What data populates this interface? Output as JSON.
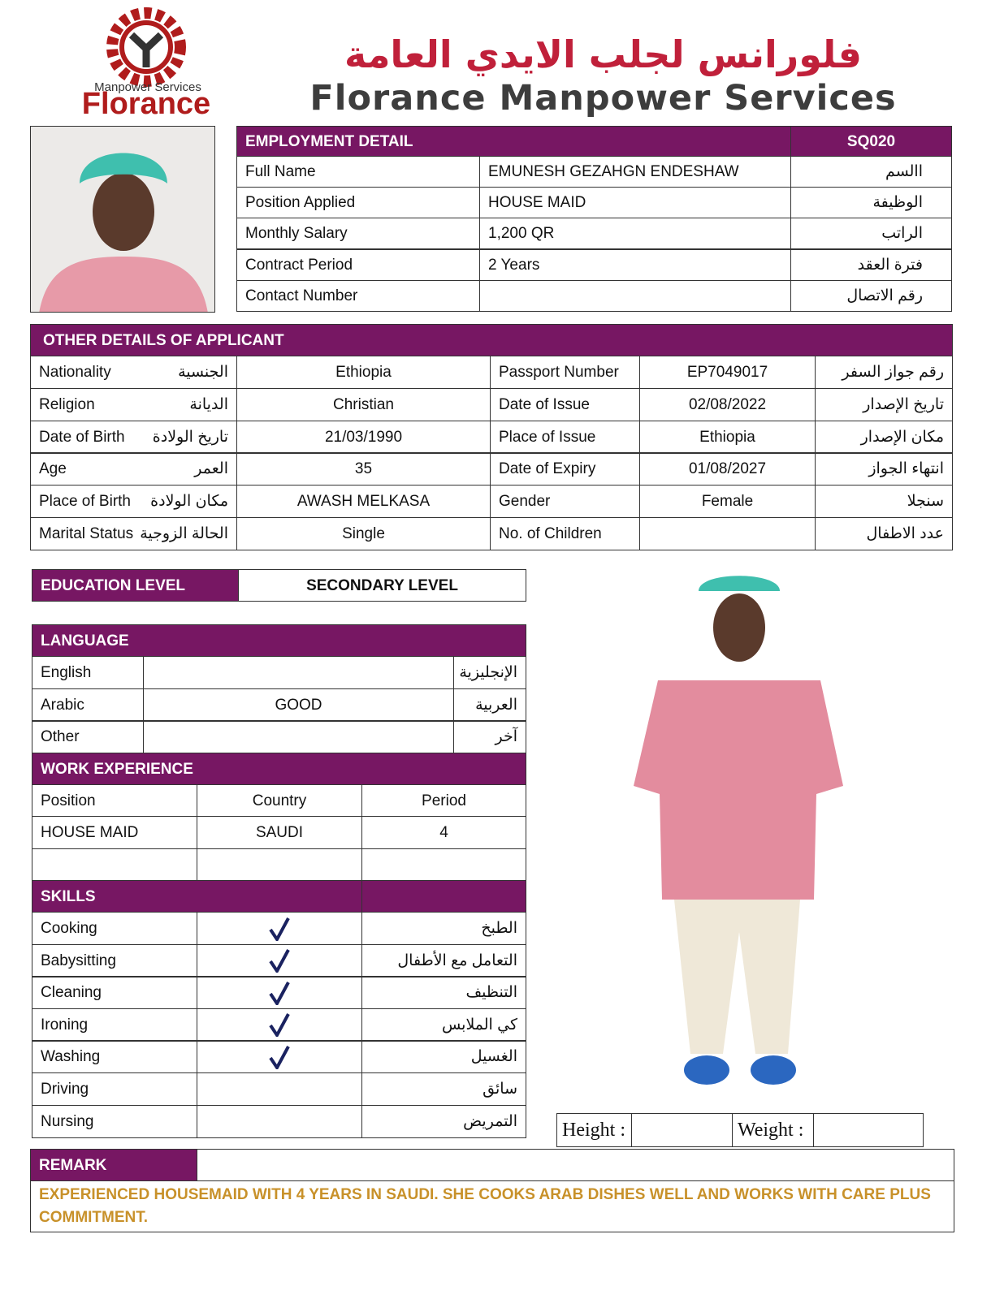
{
  "header": {
    "logo_top": "Manpower Services",
    "logo_name": "Florance",
    "arabic_name": "فلورانس لجلب الايدي العامة",
    "english_name": "Florance Manpower Services"
  },
  "employment": {
    "title": "EMPLOYMENT DETAIL",
    "code": "SQ020",
    "rows": [
      {
        "label": "Full Name",
        "value": "EMUNESH GEZAHGN ENDESHAW",
        "arabic": "االسم"
      },
      {
        "label": "Position Applied",
        "value": "HOUSE MAID",
        "arabic": "الوظيفة"
      },
      {
        "label": "Monthly Salary",
        "value": "1,200  QR",
        "arabic": "الراتب"
      },
      {
        "label": "Contract Period",
        "value": "2 Years",
        "arabic": "فترة العقد"
      },
      {
        "label": "Contact Number",
        "arabic": "رقم الاتصال"
      }
    ]
  },
  "other_details": {
    "title": "OTHER DETAILS OF APPLICANT",
    "rows": [
      {
        "label": "Nationality",
        "arabic": "الجنسية",
        "value": "Ethiopia",
        "label2": "Passport Number",
        "value2": "EP7049017",
        "arabic2": "رقم جواز السفر"
      },
      {
        "label": "Religion",
        "arabic": "الديانة",
        "value": "Christian",
        "label2": "Date of Issue",
        "value2": "02/08/2022",
        "arabic2": "تاريخ الإصدار"
      },
      {
        "label": "Date of Birth",
        "arabic": "تاريخ الولادة",
        "value": "21/03/1990",
        "label2": "Place of Issue",
        "value2": "Ethiopia",
        "arabic2": "مكان الإصدار"
      },
      {
        "label": "Age",
        "arabic": "العمر",
        "value": 35,
        "label2": "Date of Expiry",
        "value2": "01/08/2027",
        "arabic2": "انتهاء الجواز"
      },
      {
        "label": "Place of Birth",
        "arabic": "مكان الولادة",
        "value": "AWASH MELKASA",
        "label2": "Gender",
        "value2": "Female",
        "arabic2": "سنجلا"
      },
      {
        "label": "Marital Status",
        "arabic": "الحالة الزوجية",
        "value": "Single",
        "label2": "No. of Children",
        "arabic2": "عدد الاطفال"
      }
    ]
  },
  "education": {
    "title": "EDUCATION LEVEL",
    "value": "SECONDARY LEVEL"
  },
  "language": {
    "title": "LANGUAGE",
    "rows": [
      {
        "label": "English",
        "arabic": "الإنجليزية"
      },
      {
        "label": "Arabic",
        "value": "GOOD",
        "arabic": "العربية"
      },
      {
        "label": "Other",
        "arabic": "آخر"
      }
    ]
  },
  "work_experience": {
    "title": "WORK EXPERIENCE",
    "columns": [
      "Position",
      "Country",
      "Period"
    ],
    "rows": [
      [
        "HOUSE MAID",
        "SAUDI",
        4
      ]
    ]
  },
  "skills": {
    "title": "SKILLS",
    "items": [
      {
        "label": "Cooking",
        "arabic": "الطبخ",
        "checked": true
      },
      {
        "label": "Babysitting",
        "arabic": "التعامل مع الأطفال",
        "checked": true
      },
      {
        "label": "Cleaning",
        "arabic": "التنظيف",
        "checked": true
      },
      {
        "label": "Ironing",
        "arabic": "كي الملابس",
        "checked": true
      },
      {
        "label": "Washing",
        "arabic": "الغسيل",
        "checked": true
      },
      {
        "label": "Driving",
        "arabic": "سائق",
        "checked": false
      },
      {
        "label": "Nursing",
        "arabic": "التمريض",
        "checked": false
      }
    ]
  },
  "measurements": {
    "height_label": "Height :",
    "weight_label": "Weight :"
  },
  "remark": {
    "title": "REMARK",
    "text": "EXPERIENCED HOUSEMAID WITH 4 YEARS IN SAUDI. SHE COOKS ARAB DISHES WELL  AND WORKS WITH CARE PLUS COMMITMENT."
  }
}
